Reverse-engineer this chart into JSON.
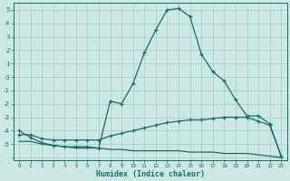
{
  "bg_color": "#cce8e4",
  "grid_color": "#aacfcb",
  "line_color": "#1a6b6b",
  "xlabel": "Humidex (Indice chaleur)",
  "xlim": [
    -0.5,
    23.5
  ],
  "ylim": [
    -6.2,
    5.5
  ],
  "yticks": [
    -6,
    -5,
    -4,
    -3,
    -2,
    -1,
    0,
    1,
    2,
    3,
    4,
    5
  ],
  "xticks": [
    0,
    1,
    2,
    3,
    4,
    5,
    6,
    7,
    8,
    9,
    10,
    11,
    12,
    13,
    14,
    15,
    16,
    17,
    18,
    19,
    20,
    21,
    22,
    23
  ],
  "curve1_x": [
    0,
    1,
    2,
    3,
    4,
    5,
    6,
    7,
    8,
    9,
    10,
    11,
    12,
    13,
    14,
    15,
    16,
    17,
    18,
    19,
    20,
    21,
    22,
    23
  ],
  "curve1_y": [
    -4.0,
    -4.5,
    -4.9,
    -5.1,
    -5.2,
    -5.2,
    -5.2,
    -5.3,
    -1.8,
    -2.0,
    -0.5,
    1.8,
    3.5,
    5.0,
    5.1,
    4.5,
    1.7,
    0.4,
    -0.3,
    -1.7,
    -2.9,
    -2.9,
    -3.5,
    -5.9
  ],
  "curve2_x": [
    0,
    1,
    2,
    3,
    4,
    5,
    6,
    7,
    8,
    9,
    10,
    11,
    12,
    13,
    14,
    15,
    16,
    17,
    18,
    19,
    20,
    21,
    22,
    23
  ],
  "curve2_y": [
    -4.3,
    -4.3,
    -4.6,
    -4.7,
    -4.7,
    -4.7,
    -4.7,
    -4.7,
    -4.4,
    -4.2,
    -4.0,
    -3.8,
    -3.6,
    -3.4,
    -3.3,
    -3.2,
    -3.2,
    -3.1,
    -3.0,
    -3.0,
    -3.0,
    -3.3,
    -3.6,
    -5.9
  ],
  "curve3_x": [
    0,
    1,
    2,
    3,
    4,
    5,
    6,
    7,
    8,
    9,
    10,
    11,
    12,
    13,
    14,
    15,
    16,
    17,
    18,
    19,
    20,
    21,
    22,
    23
  ],
  "curve3_y": [
    -4.8,
    -4.8,
    -5.0,
    -5.1,
    -5.2,
    -5.3,
    -5.3,
    -5.3,
    -5.4,
    -5.4,
    -5.5,
    -5.5,
    -5.5,
    -5.5,
    -5.5,
    -5.6,
    -5.6,
    -5.6,
    -5.7,
    -5.7,
    -5.7,
    -5.8,
    -5.9,
    -6.0
  ],
  "ytick_labels": [
    "",
    "-5",
    "-4",
    "-3",
    "-2",
    "-1",
    "0",
    "1",
    "2",
    "3",
    "4",
    "5"
  ]
}
